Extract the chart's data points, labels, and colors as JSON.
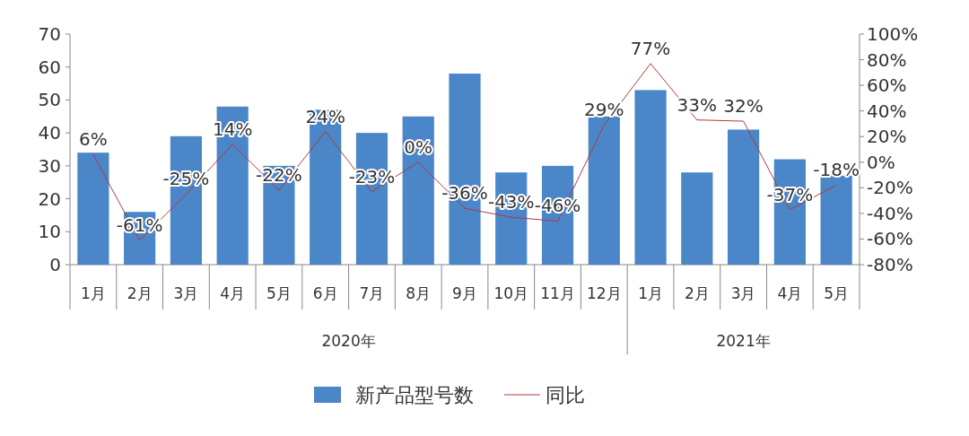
{
  "chart_data": {
    "type": "bar",
    "categories": [
      "1月",
      "2月",
      "3月",
      "4月",
      "5月",
      "6月",
      "7月",
      "8月",
      "9月",
      "10月",
      "11月",
      "12月",
      "1月",
      "2月",
      "3月",
      "4月",
      "5月"
    ],
    "series": [
      {
        "name": "新产品型号数",
        "color": "#4a86c8",
        "values": [
          34,
          16,
          39,
          48,
          30,
          47,
          40,
          45,
          58,
          28,
          30,
          45,
          53,
          28,
          41,
          32,
          27
        ]
      },
      {
        "name": "同比",
        "type": "line",
        "axis": "y2",
        "color": "#b03a3a",
        "values": [
          6,
          -61,
          -25,
          14,
          -22,
          24,
          -23,
          0,
          -36,
          -43,
          -46,
          29,
          77,
          33,
          32,
          -37,
          -18
        ],
        "value_labels": [
          "6%",
          "-61%",
          "-25%",
          "14%",
          "-22%",
          "24%",
          "-23%",
          "0%",
          "-36%",
          "-43%",
          "-46%",
          "29%",
          "77%",
          "33%",
          "32%",
          "-37%",
          "-18%"
        ]
      }
    ],
    "ylim": [
      0,
      70
    ],
    "yticks": [
      0,
      10,
      20,
      30,
      40,
      50,
      60,
      70
    ],
    "y2lim": [
      -80,
      100
    ],
    "y2ticks": [
      {
        "value": -80,
        "label": "-80%"
      },
      {
        "value": -60,
        "label": "-60%"
      },
      {
        "value": -40,
        "label": "-40%"
      },
      {
        "value": -20,
        "label": "-20%"
      },
      {
        "value": 0,
        "label": "0%"
      },
      {
        "value": 20,
        "label": "20%"
      },
      {
        "value": 40,
        "label": "40%"
      },
      {
        "value": 60,
        "label": "60%"
      },
      {
        "value": 80,
        "label": "80%"
      },
      {
        "value": 100,
        "label": "100%"
      }
    ],
    "annotations": [
      "2020年",
      "2021年"
    ],
    "legend": "bottom"
  }
}
